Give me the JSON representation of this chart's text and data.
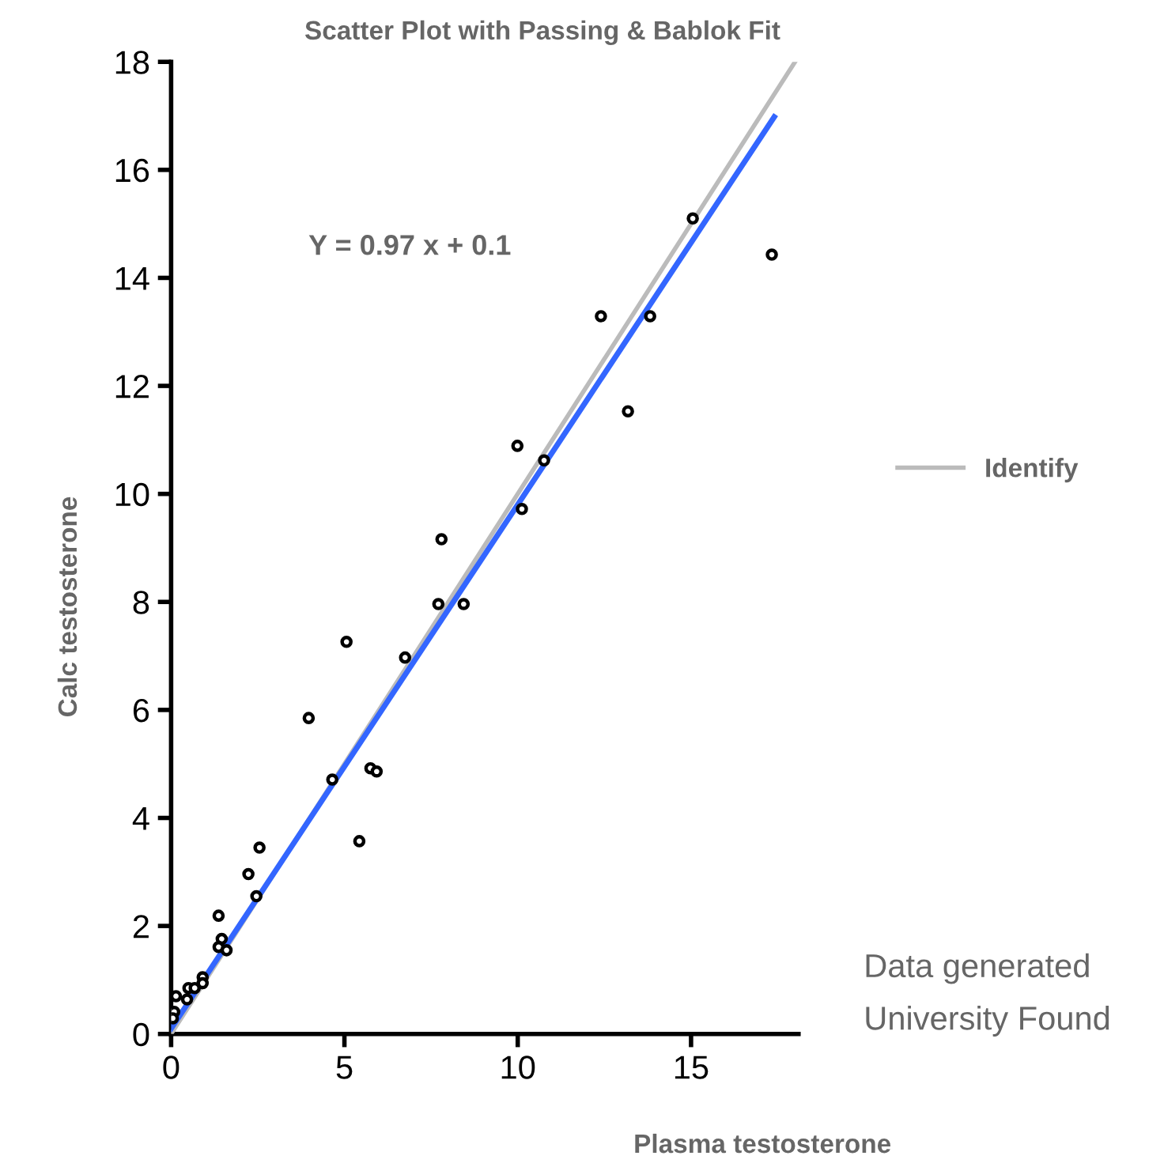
{
  "chart_data": {
    "type": "scatter",
    "title": "Scatter Plot with Passing & Bablok Fit",
    "xlabel": "Plasma testosterone",
    "ylabel": "Calc testosterone",
    "annotations": [
      "Y = 0.97 x + 0.1",
      "Data generated",
      "University Found"
    ],
    "xlim": [
      0,
      18.1
    ],
    "ylim": [
      0,
      18
    ],
    "xticks": [
      0,
      5,
      10,
      15
    ],
    "yticks": [
      0,
      2,
      4,
      6,
      8,
      10,
      12,
      14,
      16,
      18
    ],
    "grid": false,
    "legend": "right",
    "marker": "circle",
    "series": [
      {
        "color": "#000000",
        "x": [
          15.05,
          17.33,
          12.4,
          13.82,
          13.18,
          9.99,
          10.76,
          10.12,
          7.8,
          7.71,
          8.44,
          5.06,
          6.75,
          3.97,
          4.65,
          5.75,
          5.93,
          5.43,
          2.55,
          2.23,
          2.46,
          1.37,
          1.46,
          1.37,
          1.6,
          0.91,
          0.91,
          0.5,
          0.68,
          0.46,
          0.14,
          0.09,
          0.05
        ],
        "values": [
          15.1,
          14.43,
          13.29,
          13.29,
          11.53,
          10.89,
          10.62,
          9.72,
          9.16,
          7.96,
          7.96,
          7.26,
          6.97,
          5.85,
          4.71,
          4.92,
          4.86,
          3.57,
          3.45,
          2.96,
          2.55,
          2.19,
          1.76,
          1.61,
          1.55,
          1.05,
          0.94,
          0.85,
          0.85,
          0.64,
          0.7,
          0.41,
          0.29
        ]
      },
      {
        "type": "line",
        "color": "#bbbbbb",
        "name": "Identify",
        "marker": "none",
        "x": [
          0,
          18
        ],
        "values": [
          0,
          18
        ]
      },
      {
        "type": "line",
        "color": "#3366ff",
        "marker": "none",
        "x": [
          0,
          17.4
        ],
        "values": [
          0.1,
          16.98
        ]
      }
    ]
  }
}
